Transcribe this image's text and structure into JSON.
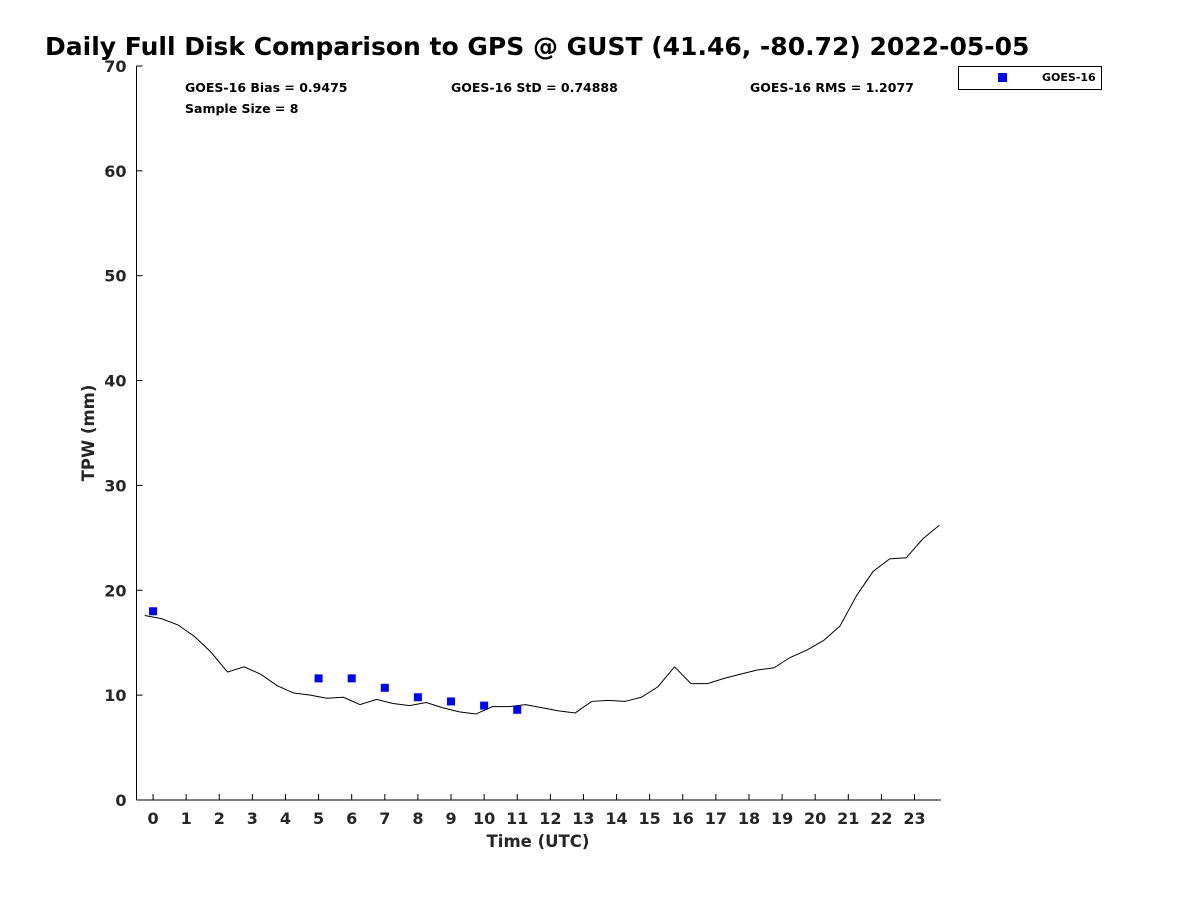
{
  "chart_data": {
    "type": "scatter",
    "title": "Daily Full Disk Comparison to GPS @ GUST (41.46, -80.72) 2022-05-05",
    "xlabel": "Time (UTC)",
    "ylabel": "TPW (mm)",
    "xlim": [
      -0.5,
      23.8
    ],
    "ylim": [
      0,
      70
    ],
    "x_ticks": [
      "0",
      "1",
      "2",
      "3",
      "4",
      "5",
      "6",
      "7",
      "8",
      "9",
      "10",
      "11",
      "12",
      "13",
      "14",
      "15",
      "16",
      "17",
      "18",
      "19",
      "20",
      "21",
      "22",
      "23"
    ],
    "y_ticks": [
      "0",
      "10",
      "20",
      "30",
      "40",
      "50",
      "60",
      "70"
    ],
    "grid": false,
    "legend_position": "outside-top-right",
    "stats": {
      "bias": "GOES-16 Bias = 0.9475",
      "std": "GOES-16 StD = 0.74888",
      "rms": "GOES-16 RMS = 1.2077",
      "sample": "Sample Size = 8"
    },
    "series": [
      {
        "name": "GOES-16",
        "kind": "scatter",
        "marker": "square",
        "color": "#0000ff",
        "x": [
          0,
          5,
          6,
          7,
          8,
          9,
          10,
          11
        ],
        "y": [
          18.0,
          11.6,
          11.6,
          10.7,
          9.8,
          9.4,
          9.0,
          8.6
        ]
      },
      {
        "kind": "line",
        "color": "#000000",
        "x": [
          -0.25,
          0.25,
          0.75,
          1.25,
          1.75,
          2.25,
          2.75,
          3.25,
          3.75,
          4.25,
          4.75,
          5.25,
          5.75,
          6.25,
          6.75,
          7.25,
          7.75,
          8.25,
          8.75,
          9.25,
          9.75,
          10.25,
          10.75,
          11.25,
          11.75,
          12.25,
          12.75,
          13.25,
          13.75,
          14.25,
          14.75,
          15.25,
          15.75,
          16.25,
          16.75,
          17.25,
          17.75,
          18.25,
          18.75,
          19.25,
          19.75,
          20.25,
          20.75,
          21.25,
          21.75,
          22.25,
          22.75,
          23.25,
          23.75
        ],
        "y": [
          17.6,
          17.3,
          16.7,
          15.6,
          14.1,
          12.2,
          12.7,
          12.0,
          10.9,
          10.2,
          10.0,
          9.7,
          9.8,
          9.1,
          9.6,
          9.2,
          9.0,
          9.3,
          8.8,
          8.4,
          8.2,
          8.9,
          8.9,
          9.1,
          8.8,
          8.5,
          8.3,
          9.4,
          9.5,
          9.4,
          9.8,
          10.8,
          12.7,
          11.1,
          11.1,
          11.6,
          12.0,
          12.4,
          12.6,
          13.6,
          14.3,
          15.2,
          16.6,
          19.5,
          21.8,
          23.0,
          23.1,
          24.9,
          26.2
        ]
      }
    ]
  }
}
